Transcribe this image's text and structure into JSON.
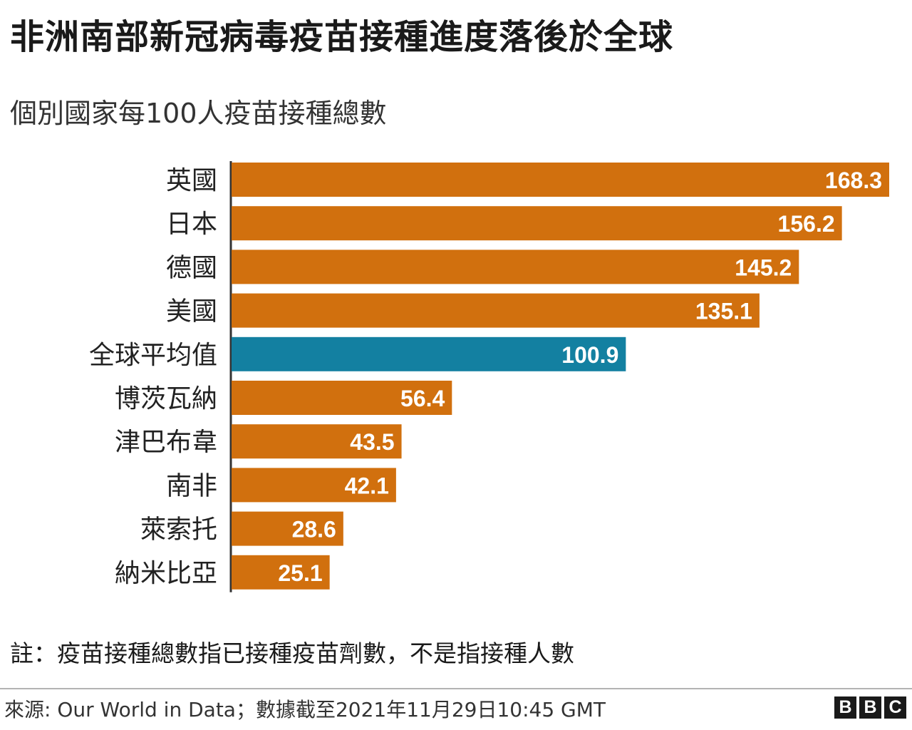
{
  "title": "非洲南部新冠病毒疫苗接種進度落後於全球",
  "subtitle": "個別國家每100人疫苗接種總數",
  "note": "註：疫苗接種總數指已接種疫苗劑數，不是指接種人數",
  "source": "來源: Our World in Data；數據截至2021年11月29日10:45 GMT",
  "logo": [
    "B",
    "B",
    "C"
  ],
  "colors": {
    "bar": "#d1700e",
    "highlight": "#1380a1",
    "axis": "#333333",
    "value_text": "#ffffff"
  },
  "chart_data": {
    "type": "bar",
    "orientation": "horizontal",
    "categories": [
      "英國",
      "日本",
      "德國",
      "美國",
      "全球平均值",
      "博茨瓦納",
      "津巴布韋",
      "南非",
      "萊索托",
      "納米比亞"
    ],
    "values": [
      168.3,
      156.2,
      145.2,
      135.1,
      100.9,
      56.4,
      43.5,
      42.1,
      28.6,
      25.1
    ],
    "value_labels": [
      "168.3",
      "156.2",
      "145.2",
      "135.1",
      "100.9",
      "56.4",
      "43.5",
      "42.1",
      "28.6",
      "25.1"
    ],
    "highlight": [
      "全球平均值"
    ],
    "xlim": [
      0,
      168.3
    ],
    "grid": false,
    "legend": "none"
  }
}
